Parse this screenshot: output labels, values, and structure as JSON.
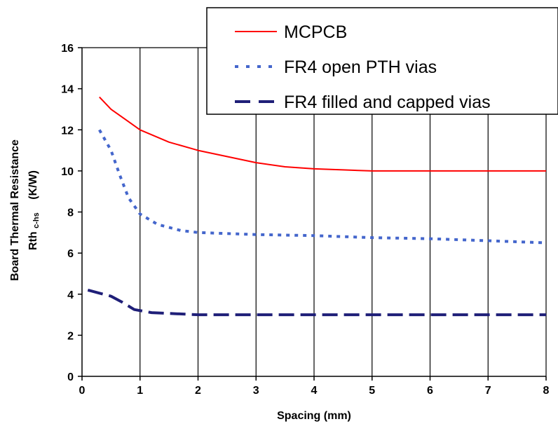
{
  "chart_data": {
    "type": "line",
    "xlabel": "Spacing (mm)",
    "ylabel": "Board Thermal Resistance",
    "ylabel2_main": "Rth",
    "ylabel2_sub": "c-hs",
    "ylabel2_unit": "(K/W)",
    "xlim": [
      0,
      8
    ],
    "ylim": [
      0,
      16
    ],
    "xticks": [
      0,
      1,
      2,
      3,
      4,
      5,
      6,
      7,
      8
    ],
    "yticks": [
      0,
      2,
      4,
      6,
      8,
      10,
      12,
      14,
      16
    ],
    "grid": "vertical",
    "legend_position": "top-right",
    "series": [
      {
        "name": "MCPCB",
        "color": "#ff0000",
        "style": "solid",
        "x": [
          0.3,
          0.5,
          0.75,
          1.0,
          1.5,
          2.0,
          2.5,
          3.0,
          3.5,
          4.0,
          4.5,
          5.0,
          6.0,
          7.0,
          8.0
        ],
        "y": [
          13.6,
          13.0,
          12.5,
          12.0,
          11.4,
          11.0,
          10.7,
          10.4,
          10.2,
          10.1,
          10.05,
          10.0,
          10.0,
          10.0,
          10.0
        ]
      },
      {
        "name": "FR4 open PTH vias",
        "color": "#4466cc",
        "style": "dotted",
        "x": [
          0.3,
          0.5,
          0.65,
          0.8,
          1.0,
          1.3,
          1.7,
          2.0,
          3.0,
          4.0,
          5.0,
          6.0,
          7.0,
          8.0
        ],
        "y": [
          12.0,
          11.0,
          9.8,
          8.7,
          7.9,
          7.4,
          7.1,
          7.0,
          6.9,
          6.85,
          6.75,
          6.7,
          6.6,
          6.5
        ]
      },
      {
        "name": "FR4 filled and capped vias",
        "color": "#1f1f78",
        "style": "dashed",
        "x": [
          0.1,
          0.3,
          0.5,
          0.7,
          0.9,
          1.2,
          1.6,
          2.0,
          3.0,
          4.0,
          5.0,
          6.0,
          7.0,
          8.0
        ],
        "y": [
          4.2,
          4.05,
          3.9,
          3.6,
          3.25,
          3.1,
          3.05,
          3.0,
          3.0,
          3.0,
          3.0,
          3.0,
          3.0,
          3.0
        ]
      }
    ]
  }
}
